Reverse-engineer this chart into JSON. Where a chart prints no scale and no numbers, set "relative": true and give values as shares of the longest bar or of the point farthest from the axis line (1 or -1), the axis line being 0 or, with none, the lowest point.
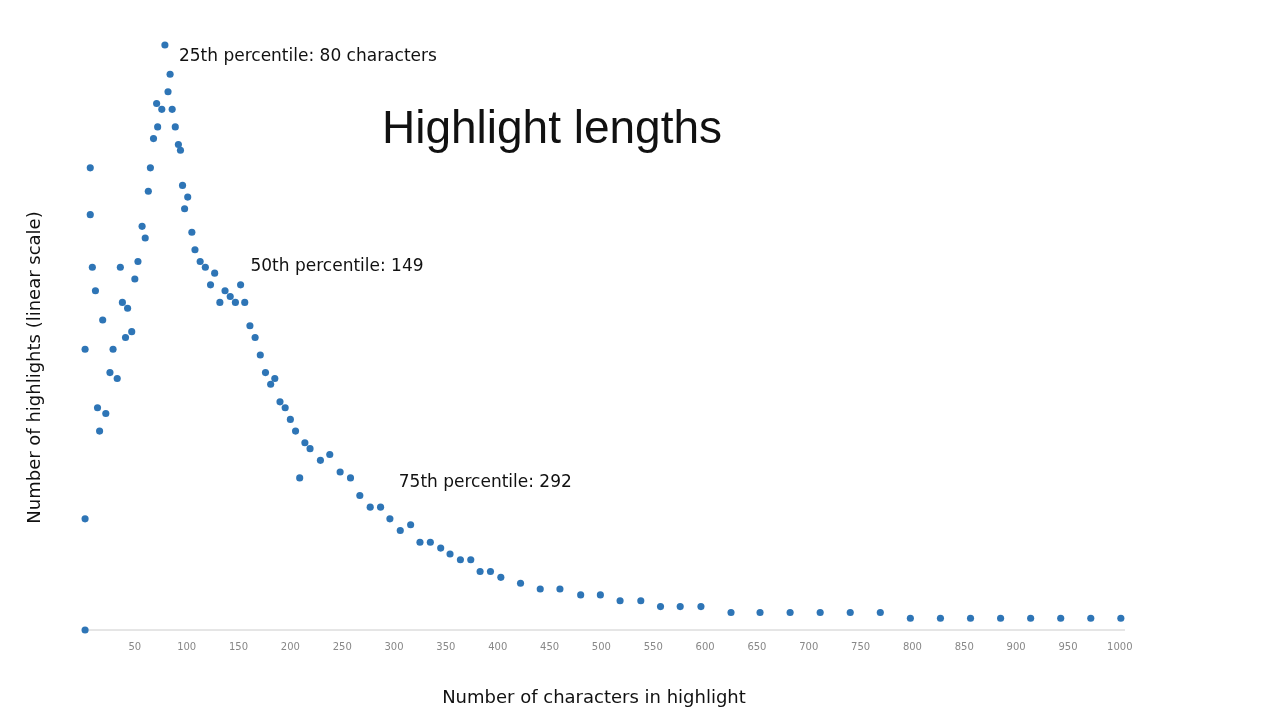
{
  "chart_data": {
    "type": "scatter",
    "title": "Highlight lengths",
    "xlabel": "Number of characters in highlight",
    "ylabel": "Number of highlights (linear scale)",
    "relative": true,
    "color": "#2e75b6",
    "marker": "circle",
    "grid": false,
    "xlim": [
      0,
      1005
    ],
    "xticks": [
      50,
      100,
      150,
      200,
      250,
      300,
      350,
      400,
      450,
      500,
      550,
      600,
      650,
      700,
      750,
      800,
      850,
      900,
      950,
      1000
    ],
    "x": [
      2,
      2,
      2,
      7,
      7,
      9,
      12,
      14,
      16,
      19,
      22,
      26,
      29,
      33,
      36,
      38,
      41,
      43,
      47,
      50,
      53,
      57,
      60,
      63,
      65,
      68,
      71,
      72,
      76,
      79,
      82,
      84,
      86,
      89,
      92,
      94,
      96,
      98,
      101,
      105,
      108,
      113,
      118,
      123,
      127,
      132,
      137,
      142,
      147,
      152,
      156,
      161,
      166,
      171,
      176,
      181,
      185,
      190,
      195,
      200,
      205,
      209,
      214,
      219,
      229,
      238,
      248,
      258,
      267,
      277,
      287,
      296,
      306,
      316,
      325,
      335,
      345,
      354,
      364,
      374,
      383,
      393,
      403,
      422,
      441,
      460,
      480,
      499,
      518,
      538,
      557,
      576,
      596,
      625,
      653,
      682,
      711,
      740,
      769,
      798,
      827,
      856,
      885,
      914,
      943,
      972,
      1001
    ],
    "values": [
      0,
      0.19,
      0.48,
      0.79,
      0.71,
      0.62,
      0.58,
      0.38,
      0.34,
      0.53,
      0.37,
      0.44,
      0.48,
      0.43,
      0.62,
      0.56,
      0.5,
      0.55,
      0.51,
      0.6,
      0.63,
      0.69,
      0.67,
      0.75,
      0.79,
      0.84,
      0.9,
      0.86,
      0.89,
      1,
      0.92,
      0.95,
      0.89,
      0.86,
      0.83,
      0.82,
      0.76,
      0.72,
      0.74,
      0.68,
      0.65,
      0.63,
      0.62,
      0.59,
      0.61,
      0.56,
      0.58,
      0.57,
      0.56,
      0.59,
      0.56,
      0.52,
      0.5,
      0.47,
      0.44,
      0.42,
      0.43,
      0.39,
      0.38,
      0.36,
      0.34,
      0.26,
      0.32,
      0.31,
      0.29,
      0.3,
      0.27,
      0.26,
      0.23,
      0.21,
      0.21,
      0.19,
      0.17,
      0.18,
      0.15,
      0.15,
      0.14,
      0.13,
      0.12,
      0.12,
      0.1,
      0.1,
      0.09,
      0.08,
      0.07,
      0.07,
      0.06,
      0.06,
      0.05,
      0.05,
      0.04,
      0.04,
      0.04,
      0.03,
      0.03,
      0.03,
      0.03,
      0.03,
      0.03,
      0.02,
      0.02,
      0.02,
      0.02,
      0.02,
      0.02,
      0.02,
      0.02
    ],
    "annotations": [
      {
        "text": "25th percentile: 80 characters",
        "x": 80,
        "y": 1
      },
      {
        "text": "50th percentile: 149",
        "x": 149,
        "y": 0.57
      },
      {
        "text": "75th percentile: 292",
        "x": 292,
        "y": 0.2
      }
    ]
  }
}
